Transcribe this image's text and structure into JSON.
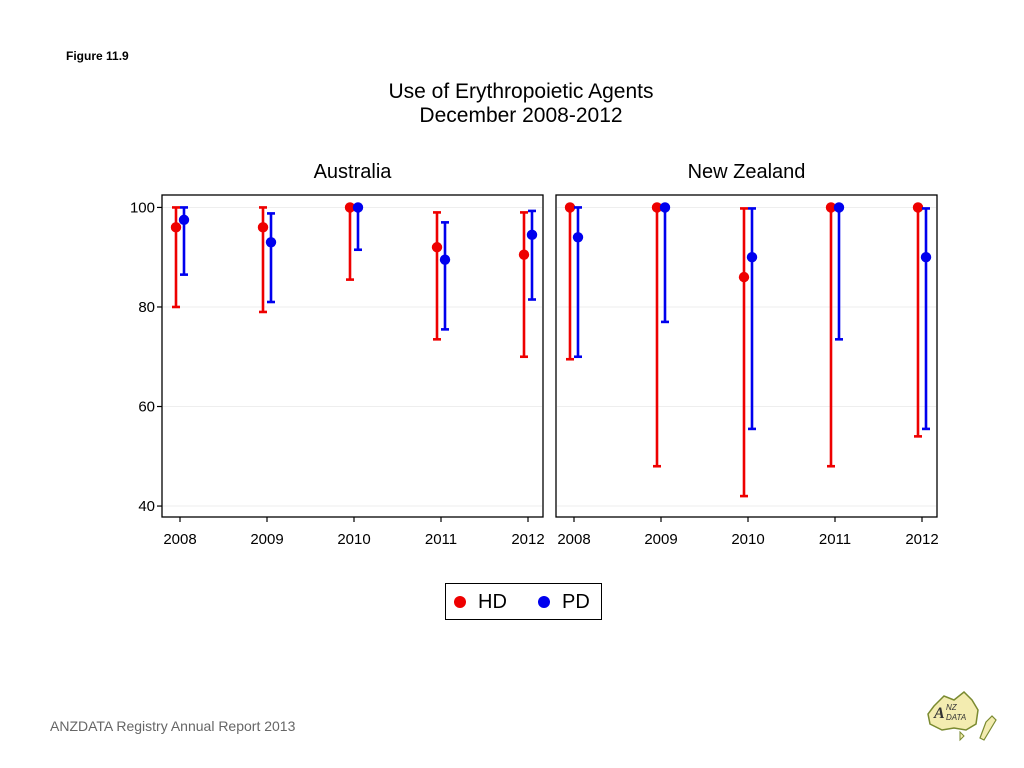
{
  "figure_label": "Figure 11.9",
  "footer": "ANZDATA Registry Annual Report 2013",
  "logo": {
    "text": "ANZDATA",
    "icon": "anzdata-logo"
  },
  "colors": {
    "HD": "#ee0000",
    "PD": "#0000ee",
    "axis": "#000000",
    "grid": "#eeeeee"
  },
  "chart_data": {
    "type": "scatter",
    "subtype": "point-with-error-bars",
    "title": "Use of Erythropoietic Agents",
    "subtitle": "December 2008-2012",
    "xlabel": "",
    "ylabel": "",
    "ylim": [
      37.8,
      102.5
    ],
    "yticks": [
      40,
      60,
      80,
      100
    ],
    "grid": true,
    "legend_position": "bottom-center",
    "legend": [
      "HD",
      "PD"
    ],
    "x": [
      "2008",
      "2009",
      "2010",
      "2011",
      "2012"
    ],
    "panels": [
      {
        "name": "Australia",
        "series": [
          {
            "name": "HD",
            "values": [
              96,
              96,
              100,
              92,
              90.5
            ],
            "lower": [
              80,
              79,
              85.5,
              73.5,
              70
            ],
            "upper": [
              100,
              100,
              100,
              99,
              99
            ]
          },
          {
            "name": "PD",
            "values": [
              97.5,
              93,
              100,
              89.5,
              94.5
            ],
            "lower": [
              86.5,
              81,
              91.5,
              75.5,
              81.5
            ],
            "upper": [
              100,
              98.8,
              100,
              97,
              99.3
            ]
          }
        ]
      },
      {
        "name": "New Zealand",
        "series": [
          {
            "name": "HD",
            "values": [
              100,
              100,
              86,
              100,
              100
            ],
            "lower": [
              69.5,
              48,
              42,
              48,
              54
            ],
            "upper": [
              100,
              100,
              99.8,
              100,
              100
            ]
          },
          {
            "name": "PD",
            "values": [
              94,
              100,
              90,
              100,
              90
            ],
            "lower": [
              70,
              77,
              55.5,
              73.5,
              55.5
            ],
            "upper": [
              100,
              100,
              99.8,
              100,
              99.8
            ]
          }
        ]
      }
    ]
  }
}
